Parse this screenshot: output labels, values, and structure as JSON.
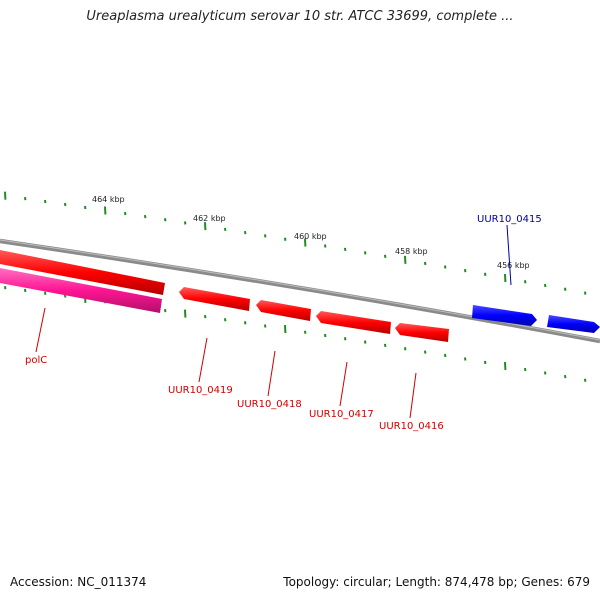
{
  "title": "Ureaplasma urealyticum serovar 10 str. ATCC 33699, complete ...",
  "footer": {
    "accession": "Accession: NC_011374",
    "summary": "Topology: circular; Length: 874,478 bp; Genes: 679"
  },
  "colors": {
    "reverse_gene": "#ff0000",
    "forward_gene": "#0000ff",
    "rna_gene": "#ff1493",
    "ticks": "#228b22",
    "backbone": "#888888"
  },
  "scale_labels": [
    "464 kbp",
    "462 kbp",
    "460 kbp",
    "458 kbp",
    "456 kbp"
  ],
  "genes": [
    {
      "name": "polC",
      "strand": "reverse",
      "type": "rna"
    },
    {
      "name": "UUR10_0419",
      "strand": "reverse",
      "type": "cds"
    },
    {
      "name": "UUR10_0418",
      "strand": "reverse",
      "type": "cds"
    },
    {
      "name": "UUR10_0417",
      "strand": "reverse",
      "type": "cds"
    },
    {
      "name": "UUR10_0416",
      "strand": "reverse",
      "type": "cds"
    },
    {
      "name": "UUR10_0415",
      "strand": "forward",
      "type": "cds"
    }
  ]
}
